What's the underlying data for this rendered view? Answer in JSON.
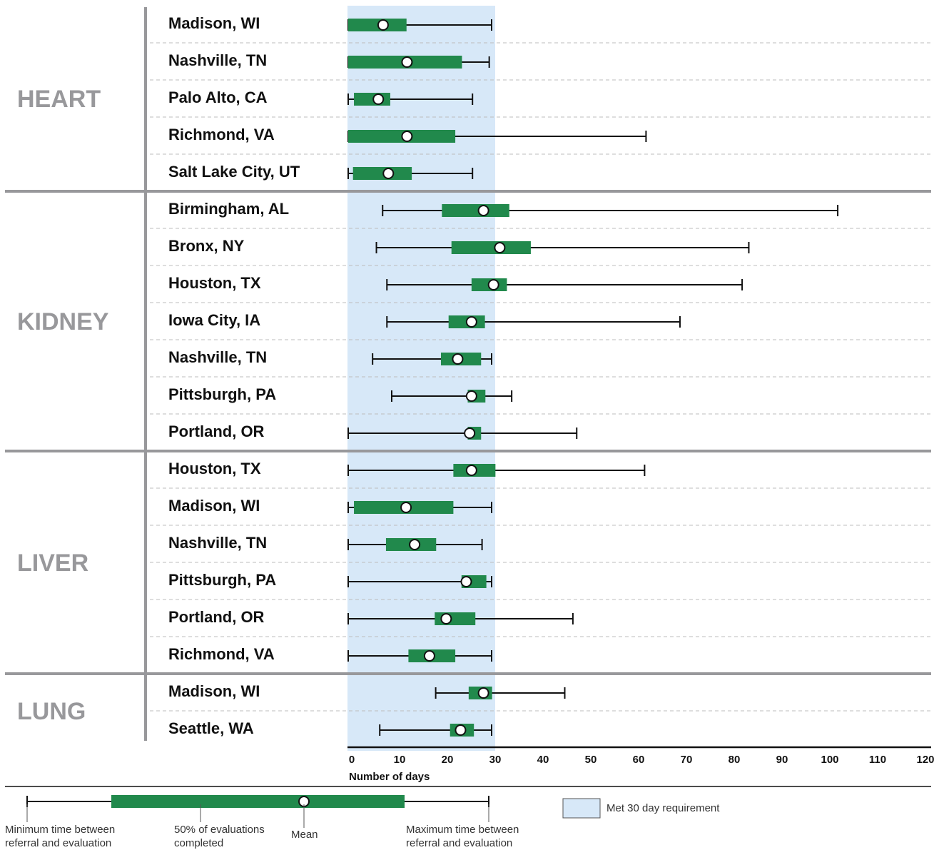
{
  "chart_data": {
    "type": "box-range",
    "xlabel": "Number of days",
    "xlim": [
      0,
      120
    ],
    "x_ticks": [
      0,
      10,
      20,
      30,
      40,
      50,
      60,
      70,
      80,
      90,
      100,
      110,
      120
    ],
    "threshold": {
      "value": 30,
      "label": "Met 30 day requirement",
      "color": "#d7e8f8"
    },
    "colors": {
      "box": "#21894c",
      "mean_fill": "#ffffff",
      "group_label": "#98989b",
      "threshold": "#d7e8f8"
    },
    "groups": [
      {
        "name": "HEART",
        "rows": [
          {
            "site": "Madison, WI",
            "min": 0,
            "q1": 0,
            "q3": 12.2,
            "max": 30,
            "mean": 7.3
          },
          {
            "site": "Nashville, TN",
            "min": 0,
            "q1": 0,
            "q3": 23.8,
            "max": 29.5,
            "mean": 12.3
          },
          {
            "site": "Palo Alto, CA",
            "min": 0,
            "q1": 1.2,
            "q3": 8.8,
            "max": 26,
            "mean": 6.3
          },
          {
            "site": "Richmond, VA",
            "min": 0,
            "q1": 0,
            "q3": 22.4,
            "max": 62.3,
            "mean": 12.3
          },
          {
            "site": "Salt Lake City, UT",
            "min": 0,
            "q1": 1,
            "q3": 13.3,
            "max": 26,
            "mean": 8.4
          }
        ]
      },
      {
        "name": "KIDNEY",
        "rows": [
          {
            "site": "Birmingham, AL",
            "min": 7.2,
            "q1": 19.6,
            "q3": 33.7,
            "max": 102.4,
            "mean": 28.3
          },
          {
            "site": "Bronx, NY",
            "min": 5.9,
            "q1": 21.6,
            "q3": 38.2,
            "max": 83.8,
            "mean": 31.7
          },
          {
            "site": "Houston, TX",
            "min": 8.1,
            "q1": 25.8,
            "q3": 33.2,
            "max": 82.4,
            "mean": 30.4
          },
          {
            "site": "Iowa City, IA",
            "min": 8.1,
            "q1": 21,
            "q3": 28.6,
            "max": 69.4,
            "mean": 25.8
          },
          {
            "site": "Nashville, TN",
            "min": 5.1,
            "q1": 19.4,
            "q3": 27.8,
            "max": 30,
            "mean": 22.9
          },
          {
            "site": "Pittsburgh, PA",
            "min": 9.1,
            "q1": 25,
            "q3": 28.7,
            "max": 34.2,
            "mean": 25.8
          },
          {
            "site": "Portland, OR",
            "min": 0,
            "q1": 25,
            "q3": 27.8,
            "max": 47.8,
            "mean": 25.4
          }
        ]
      },
      {
        "name": "LIVER",
        "rows": [
          {
            "site": "Houston, TX",
            "min": 0,
            "q1": 22,
            "q3": 30.8,
            "max": 62,
            "mean": 25.8
          },
          {
            "site": "Madison, WI",
            "min": 0,
            "q1": 1.2,
            "q3": 22,
            "max": 30,
            "mean": 12.1
          },
          {
            "site": "Nashville, TN",
            "min": 0,
            "q1": 7.9,
            "q3": 18.4,
            "max": 28,
            "mean": 13.9
          },
          {
            "site": "Pittsburgh, PA",
            "min": 0,
            "q1": 23.7,
            "q3": 28.9,
            "max": 30,
            "mean": 24.7
          },
          {
            "site": "Portland, OR",
            "min": 0,
            "q1": 18.1,
            "q3": 26.6,
            "max": 47,
            "mean": 20.5
          },
          {
            "site": "Richmond, VA",
            "min": 0,
            "q1": 12.6,
            "q3": 22.4,
            "max": 30,
            "mean": 17
          }
        ]
      },
      {
        "name": "LUNG",
        "rows": [
          {
            "site": "Madison, WI",
            "min": 18.3,
            "q1": 25.2,
            "q3": 30.1,
            "max": 45.3,
            "mean": 28.3
          },
          {
            "site": "Seattle, WA",
            "min": 6.6,
            "q1": 21.3,
            "q3": 26.3,
            "max": 30,
            "mean": 23.5
          }
        ]
      }
    ]
  },
  "legend": {
    "min_label": [
      "Minimum time between",
      "referral and evaluation"
    ],
    "box_label": [
      "50% of evaluations",
      "completed"
    ],
    "mean_label": "Mean",
    "max_label": [
      "Maximum time between",
      "referral and evaluation"
    ],
    "threshold_label": "Met 30 day requirement"
  }
}
